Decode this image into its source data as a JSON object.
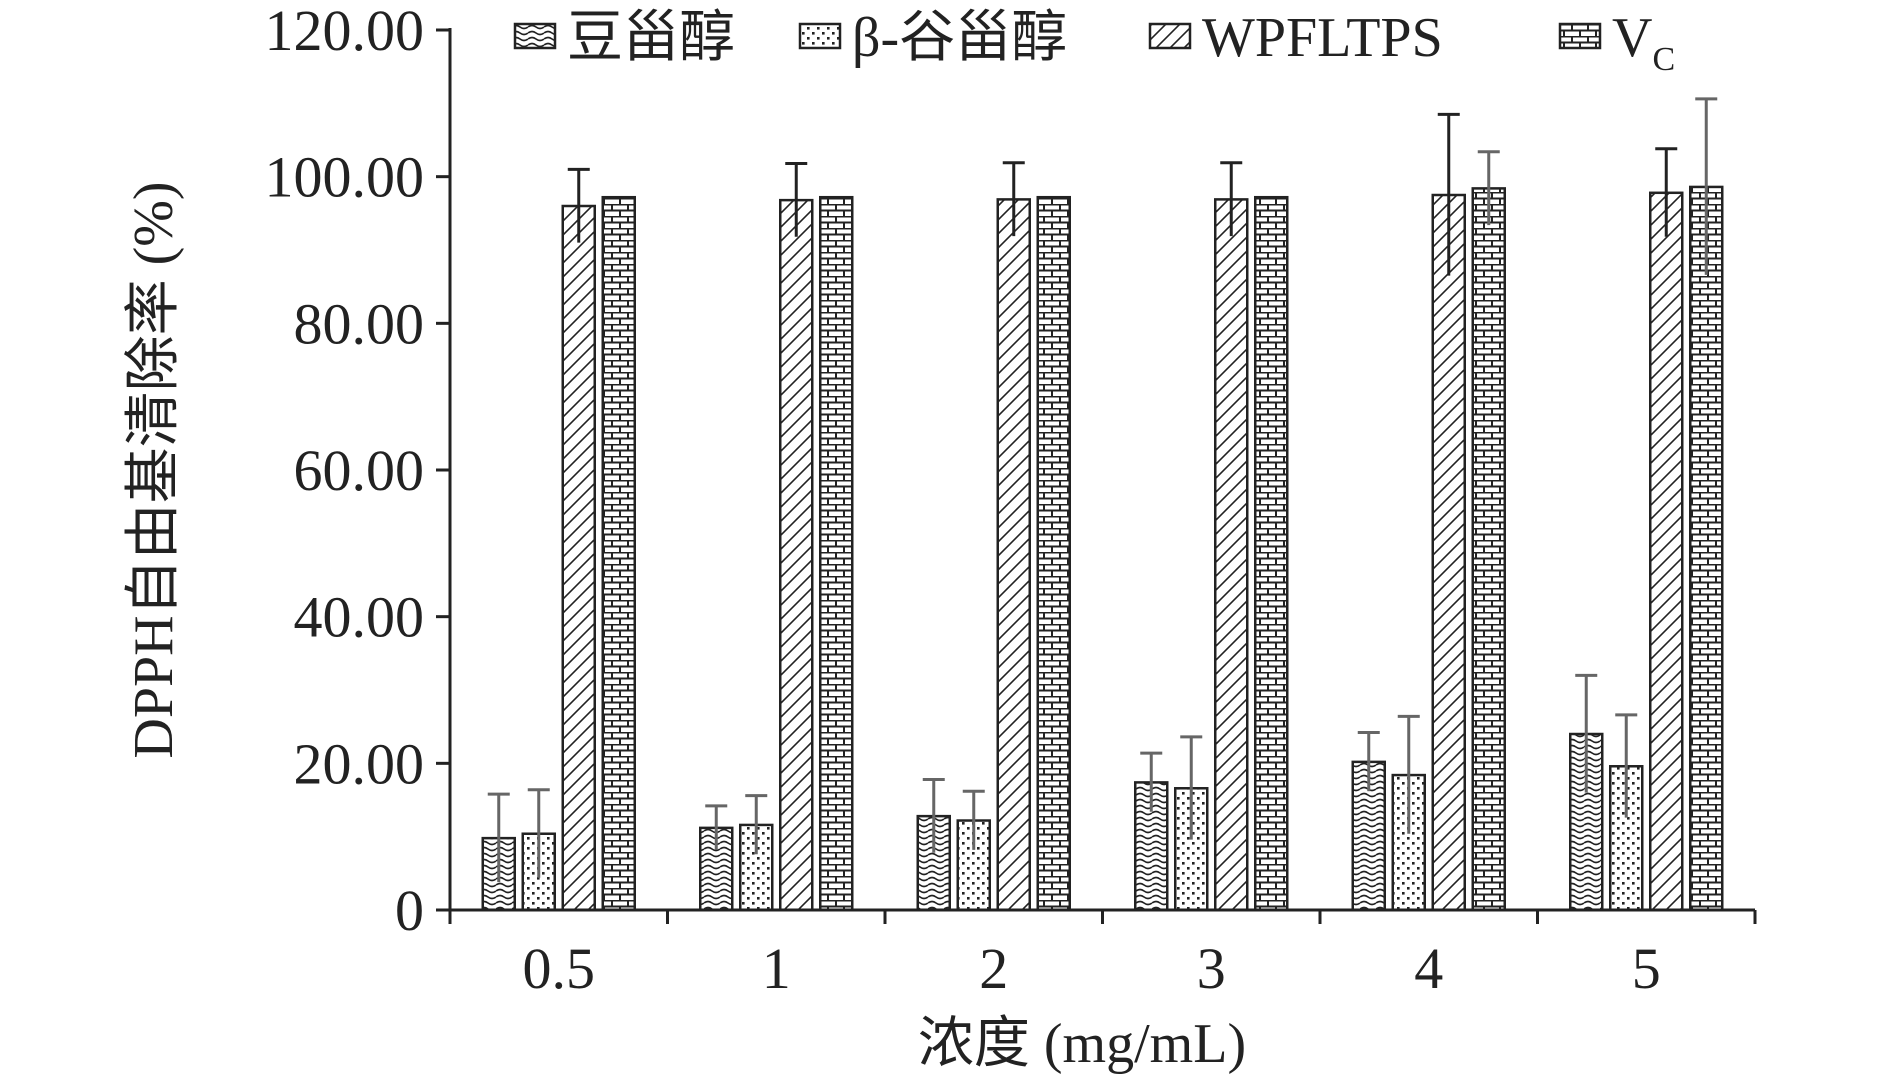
{
  "chart_data": {
    "type": "bar",
    "categories": [
      "0.5",
      "1",
      "2",
      "3",
      "4",
      "5"
    ],
    "series": [
      {
        "name": "豆甾醇",
        "values": [
          9.8,
          11.2,
          12.8,
          17.4,
          20.2,
          24.0
        ],
        "errors": [
          6.0,
          3.0,
          5.0,
          4.0,
          4.0,
          8.0
        ]
      },
      {
        "name": "β-谷甾醇",
        "values": [
          10.4,
          11.6,
          12.2,
          16.6,
          18.4,
          19.6
        ],
        "errors": [
          6.0,
          4.0,
          4.0,
          7.0,
          8.0,
          7.0
        ]
      },
      {
        "name": "WPFLTPS",
        "values": [
          96.0,
          96.8,
          96.9,
          96.9,
          97.5,
          97.8
        ],
        "errors": [
          5.0,
          5.0,
          5.0,
          5.0,
          11.0,
          6.0
        ]
      },
      {
        "name": "VC",
        "values": [
          97.2,
          97.2,
          97.2,
          97.2,
          98.4,
          98.6
        ],
        "errors": [
          0.0,
          0.0,
          0.0,
          0.0,
          5.0,
          12.0
        ]
      }
    ],
    "title": "",
    "xlabel": "浓度 (mg/mL)",
    "ylabel": "DPPH自由基清除率 (%)",
    "ylim": [
      0,
      120
    ],
    "yticks": [
      "0",
      "20.00",
      "40.00",
      "60.00",
      "80.00",
      "100.00",
      "120.00"
    ],
    "legend_placement": "top",
    "grid": false
  },
  "legend": {
    "items": [
      {
        "label": "豆甾醇"
      },
      {
        "label": "β-谷甾醇"
      },
      {
        "label": "WPFLTPS"
      },
      {
        "label": "V",
        "subscript": "C"
      }
    ]
  }
}
